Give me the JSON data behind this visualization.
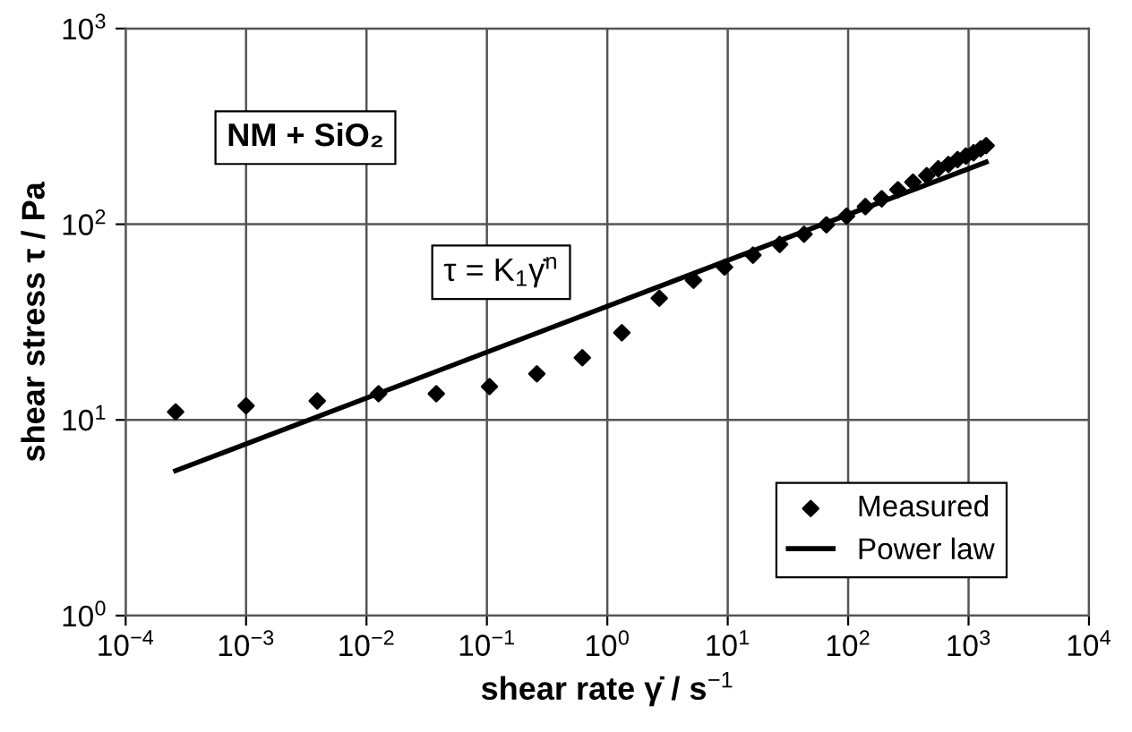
{
  "chart_data": {
    "type": "scatter",
    "xlabel": "shear rate γ̇ / s$^{−1}$",
    "ylabel": "shear stress τ / Pa",
    "log": "xy",
    "xlim": [
      0.0001,
      10000
    ],
    "ylim": [
      1,
      1000
    ],
    "xticks": [
      {
        "value": 0.0001,
        "label": "10$^{−4}$"
      },
      {
        "value": 0.001,
        "label": "10$^{−3}$"
      },
      {
        "value": 0.01,
        "label": "10$^{−2}$"
      },
      {
        "value": 0.1,
        "label": "10$^{−1}$"
      },
      {
        "value": 1,
        "label": "10$^{0}$"
      },
      {
        "value": 10,
        "label": "10$^{1}$"
      },
      {
        "value": 100,
        "label": "10$^{2}$"
      },
      {
        "value": 1000,
        "label": "10$^{3}$"
      },
      {
        "value": 10000,
        "label": "10$^{4}$"
      }
    ],
    "yticks": [
      {
        "value": 1,
        "label": "10$^{0}$"
      },
      {
        "value": 10,
        "label": "10$^{1}$"
      },
      {
        "value": 100,
        "label": "10$^{2}$"
      },
      {
        "value": 1000,
        "label": "10$^{3}$"
      }
    ],
    "grid": true,
    "legend": "bottom right",
    "annotations": [
      "NM + SiO₂",
      "τ = K$_{1}$γ̇$^{n}$"
    ],
    "series": [
      {
        "name": "Measured",
        "marker": "diamond",
        "color": "#000000",
        "x": [
          0.00026,
          0.001,
          0.0039,
          0.0126,
          0.038,
          0.105,
          0.26,
          0.62,
          1.32,
          2.7,
          5.2,
          9.4,
          16.2,
          27,
          43,
          66,
          97,
          139,
          190,
          259,
          345,
          450,
          560,
          680,
          810,
          950,
          1100,
          1260,
          1400
        ],
        "values": [
          11.0,
          11.8,
          12.5,
          13.6,
          13.6,
          14.8,
          17.2,
          20.8,
          27.9,
          41.9,
          51.7,
          60.4,
          69.5,
          78.9,
          88.9,
          99.3,
          110,
          123,
          135,
          150,
          164,
          177,
          192,
          202,
          214,
          223,
          232,
          243,
          252
        ]
      },
      {
        "name": "Power law",
        "type": "line",
        "marker": "none",
        "line_style": "solid",
        "color": "#000000",
        "x": [
          0.00026,
          1400
        ],
        "values": [
          5.5,
          208
        ]
      }
    ]
  }
}
